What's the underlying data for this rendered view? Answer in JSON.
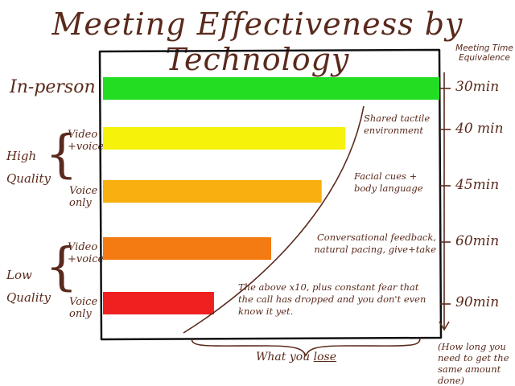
{
  "chart_data": {
    "type": "bar",
    "orientation": "horizontal",
    "title": "Meeting Effectiveness by Technology",
    "categories": [
      "In-person",
      "Video + voice",
      "Voice only",
      "Video + voice",
      "Voice only"
    ],
    "values": [
      100,
      72,
      65,
      50,
      33
    ],
    "bar_colors": [
      "#22dd22",
      "#f7f20a",
      "#f7b00f",
      "#f47b12",
      "#ee2020"
    ],
    "value_axis_range": [
      0,
      100
    ],
    "grid": false,
    "groups": [
      {
        "label": "In-person",
        "rows": [
          0
        ]
      },
      {
        "label": "High Quality",
        "rows": [
          1,
          2
        ]
      },
      {
        "label": "Low Quality",
        "rows": [
          3,
          4
        ]
      }
    ],
    "meeting_time_equivalence": [
      "30min",
      "40 min",
      "45min",
      "60min",
      "90min"
    ],
    "right_axis_title": "Meeting Time Equivalence",
    "right_axis_note": "(How long you need to get the same amount done)",
    "annotations": [
      "Shared tactile environment",
      "Facial cues + body language",
      "Conversational feedback, natural pacing, give+take",
      "The above x10, plus constant fear that the call has dropped and you don't even know it yet."
    ],
    "brace_label_prefix": "What you",
    "brace_label_emphasis": "lose"
  },
  "labels": {
    "in_person": "In-person",
    "high_quality": "High\nQuality",
    "low_quality": "Low\nQuality",
    "video_voice": "Video\n+voice",
    "voice_only": "Voice\nonly"
  },
  "colors": {
    "ink": "#5a2a1c",
    "frame": "#111111"
  }
}
